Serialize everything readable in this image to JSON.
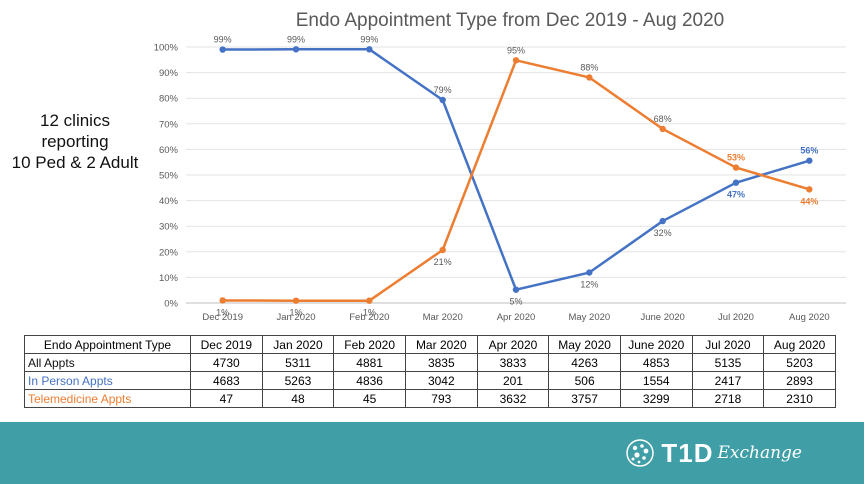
{
  "side_note": {
    "lines": [
      "12 clinics",
      "reporting",
      "10 Ped & 2 Adult"
    ]
  },
  "chart_data": {
    "type": "line",
    "title": "Endo Appointment Type from Dec 2019 - Aug 2020",
    "xlabel": "",
    "ylabel": "",
    "categories": [
      "Dec 2019",
      "Jan 2020",
      "Feb 2020",
      "Mar 2020",
      "Apr 2020",
      "May 2020",
      "June 2020",
      "Jul 2020",
      "Aug 2020"
    ],
    "ylim": [
      0,
      100
    ],
    "ytick_labels": [
      "0%",
      "10%",
      "20%",
      "30%",
      "40%",
      "50%",
      "60%",
      "70%",
      "80%",
      "90%",
      "100%"
    ],
    "grid": true,
    "legend": "none",
    "series": [
      {
        "color": "#4472c4",
        "values": [
          99,
          99.1,
          99.1,
          79.3,
          5.2,
          11.9,
          32,
          47,
          55.6
        ],
        "labels": [
          "99%",
          "99%",
          "99%",
          "79%",
          "5%",
          "12%",
          "32%",
          "47%",
          "56%"
        ]
      },
      {
        "color": "#ed7d31",
        "values": [
          1,
          0.9,
          0.9,
          20.7,
          94.8,
          88.1,
          68,
          52.9,
          44.4
        ],
        "labels": [
          "1%",
          "1%",
          "1%",
          "21%",
          "95%",
          "88%",
          "68%",
          "53%",
          "44%"
        ]
      }
    ]
  },
  "table": {
    "header": [
      "Endo Appointment Type",
      "Dec 2019",
      "Jan 2020",
      "Feb 2020",
      "Mar 2020",
      "Apr 2020",
      "May 2020",
      "June 2020",
      "Jul 2020",
      "Aug 2020"
    ],
    "rows": [
      {
        "label": "All Appts",
        "color": "#111111",
        "values": [
          "4730",
          "5311",
          "4881",
          "3835",
          "3833",
          "4263",
          "4853",
          "5135",
          "5203"
        ]
      },
      {
        "label": "In Person Appts",
        "color": "#4472c4",
        "values": [
          "4683",
          "5263",
          "4836",
          "3042",
          "201",
          "506",
          "1554",
          "2417",
          "2893"
        ]
      },
      {
        "label": "Telemedicine Appts",
        "color": "#ed7d31",
        "values": [
          "47",
          "48",
          "45",
          "793",
          "3632",
          "3757",
          "3299",
          "2718",
          "2310"
        ]
      }
    ]
  },
  "footer": {
    "band_color": "#3f9ea6",
    "logo_text": "T1D",
    "logo_script": "Exchange"
  }
}
